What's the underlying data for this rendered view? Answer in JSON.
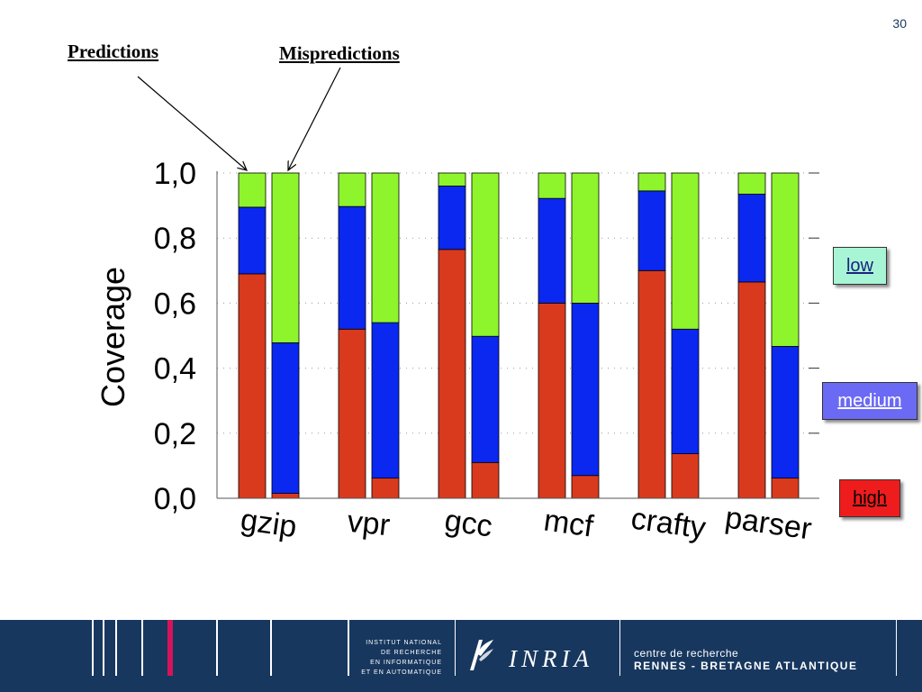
{
  "page_number": "30",
  "callouts": {
    "predictions": "Predictions",
    "mispredictions": "Mispredictions"
  },
  "legend": {
    "low": {
      "label": "low",
      "color": "#8ef52c"
    },
    "medium": {
      "label": "medium",
      "color": "#0a28f0"
    },
    "high": {
      "label": "high",
      "color": "#d93a1e"
    }
  },
  "chart_data": {
    "type": "bar",
    "stacked": true,
    "ylabel": "Coverage",
    "ylim": [
      0,
      1
    ],
    "yticks": [
      "0,0",
      "0,2",
      "0,4",
      "0,6",
      "0,8",
      "1,0"
    ],
    "categories": [
      "gzip",
      "vpr",
      "gcc",
      "mcf",
      "crafty",
      "parser"
    ],
    "bar_groups": [
      "Predictions",
      "Mispredictions"
    ],
    "stack_order": [
      "high",
      "medium",
      "low"
    ],
    "series": [
      {
        "name": "high",
        "color": "#d93a1e",
        "predictions": [
          0.69,
          0.52,
          0.765,
          0.6,
          0.7,
          0.665
        ],
        "mispredictions": [
          0.015,
          0.062,
          0.11,
          0.07,
          0.137,
          0.062
        ]
      },
      {
        "name": "medium",
        "color": "#0a28f0",
        "predictions": [
          0.205,
          0.377,
          0.195,
          0.322,
          0.245,
          0.27
        ],
        "mispredictions": [
          0.463,
          0.478,
          0.388,
          0.53,
          0.383,
          0.405
        ]
      },
      {
        "name": "low",
        "color": "#8ef52c",
        "predictions": [
          0.105,
          0.103,
          0.04,
          0.078,
          0.055,
          0.065
        ],
        "mispredictions": [
          0.522,
          0.46,
          0.502,
          0.4,
          0.48,
          0.533
        ]
      }
    ],
    "grid": "dotted horizontal",
    "legend_position": "right"
  },
  "footer": {
    "institute": [
      "INSTITUT NATIONAL",
      "DE RECHERCHE",
      "EN INFORMATIQUE",
      "ET EN AUTOMATIQUE"
    ],
    "brand": "INRIA",
    "centre_line1": "centre de recherche",
    "centre_line2": "RENNES - BRETAGNE ATLANTIQUE",
    "background": "#17375e",
    "accent": "#d4145a"
  }
}
